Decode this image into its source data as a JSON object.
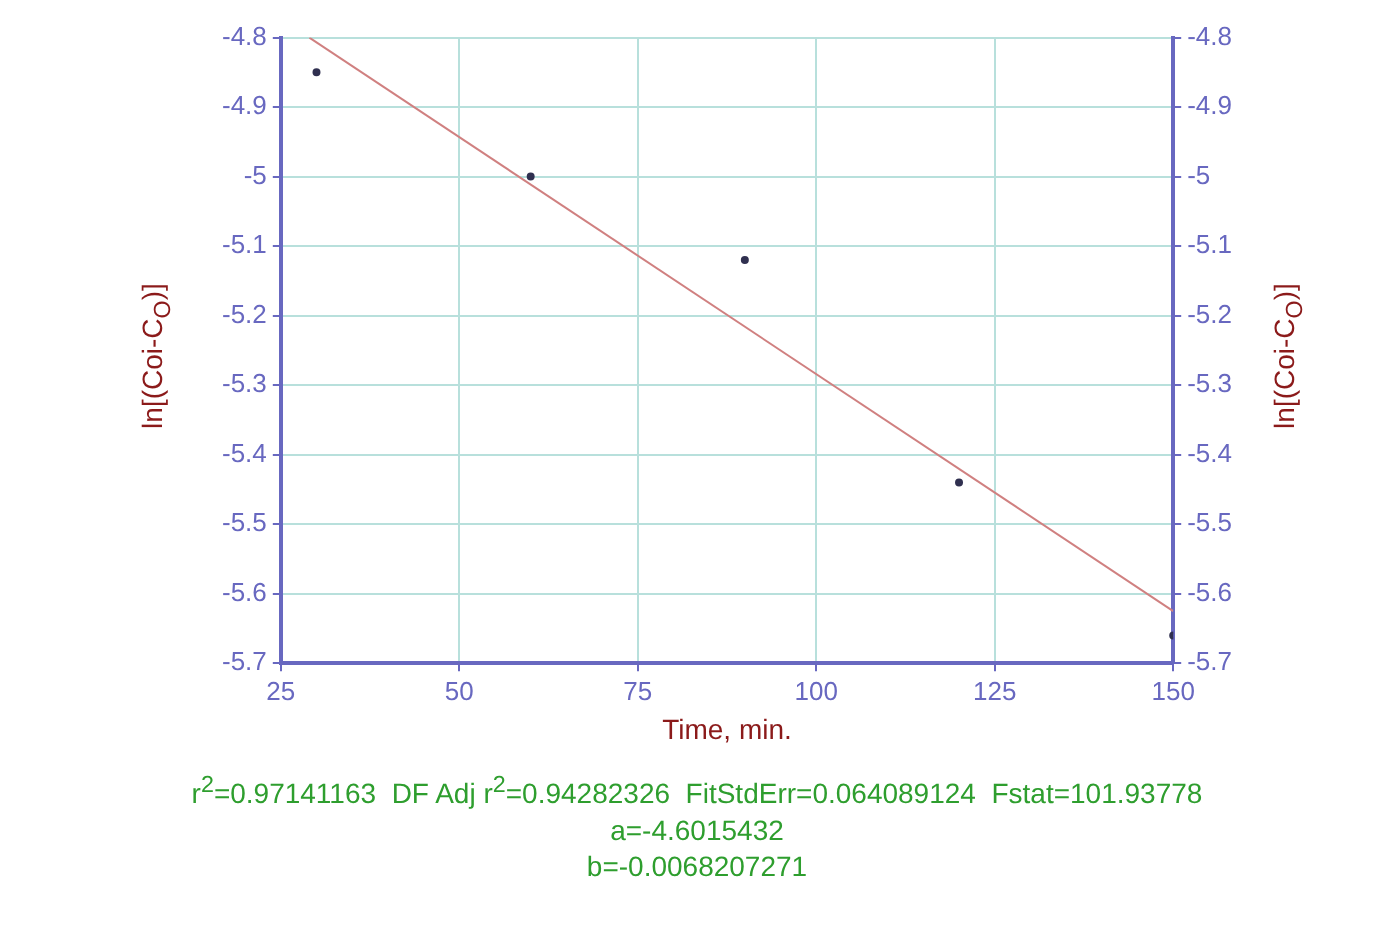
{
  "chart_data": {
    "type": "scatter",
    "xlabel": "Time, min.",
    "ylabel": "ln[(Coi-C$_{O}$)]",
    "y2label": "ln[(Coi-C$_{O}$)]",
    "series": [
      {
        "color": "#303050",
        "x": [
          30,
          60,
          90,
          120,
          150
        ],
        "values": [
          -4.85,
          -5.0,
          -5.12,
          -5.44,
          -5.66
        ],
        "marker": "circle"
      },
      {
        "type": "line",
        "color": "#d08080",
        "x": [
          29,
          150
        ],
        "values": [
          -4.8,
          -5.625
        ],
        "marker": "none",
        "line_style": "solid"
      }
    ],
    "xlim": [
      25,
      150
    ],
    "xticks": [
      25,
      50,
      75,
      100,
      125,
      150
    ],
    "ylim": [
      -5.7,
      -4.8
    ],
    "yticks": [
      -5.7,
      -5.6,
      -5.5,
      -5.4,
      -5.3,
      -5.2,
      -5.1,
      -5,
      -4.9,
      -4.8
    ],
    "y2lim": [
      -5.7,
      -4.8
    ],
    "y2ticks": [
      -5.7,
      -5.6,
      -5.5,
      -5.4,
      -5.3,
      -5.2,
      -5.1,
      -5,
      -4.9,
      -4.8
    ],
    "grid": true,
    "legend": false,
    "annotations": [
      "r$^{2}$=0.97141163  DF Adj r$^{2}$=0.94282326  FitStdErr=0.064089124  Fstat=101.93778",
      "a=-4.6015432",
      "b=-0.0068207271"
    ]
  }
}
